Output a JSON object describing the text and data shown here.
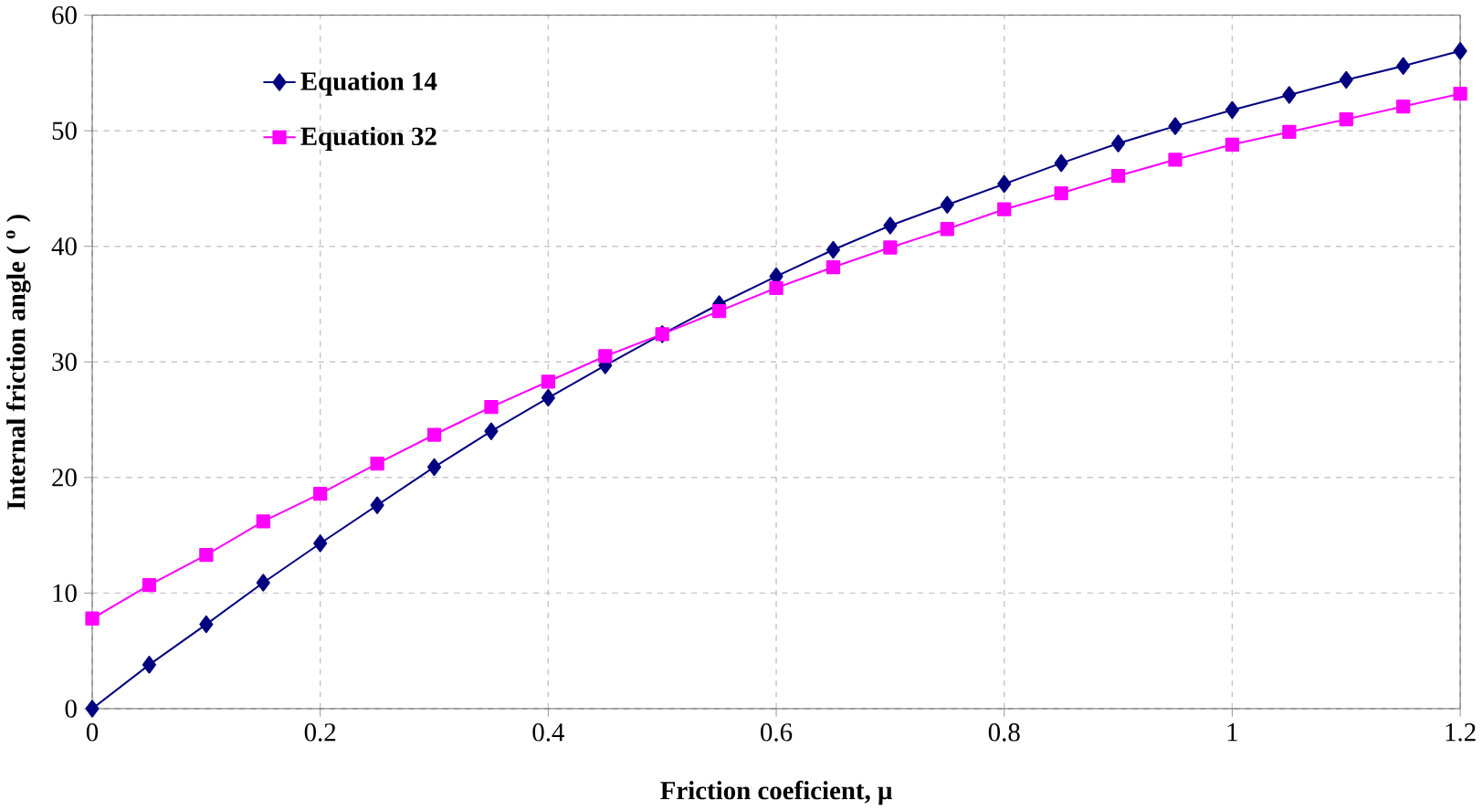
{
  "chart_data": {
    "type": "line",
    "xlabel": "Friction coeficient, μ",
    "ylabel": "Internal friction angle ( $^{o}$ )",
    "x": [
      0,
      0.05,
      0.1,
      0.15,
      0.2,
      0.25,
      0.3,
      0.35,
      0.4,
      0.45,
      0.5,
      0.55,
      0.6,
      0.65,
      0.7,
      0.75,
      0.8,
      0.85,
      0.9,
      0.95,
      1,
      1.05,
      1.1,
      1.15,
      1.2
    ],
    "series": [
      {
        "name": "Equation 14",
        "color": "#000080",
        "marker": "diamond",
        "values": [
          0,
          3.8,
          7.3,
          10.9,
          14.3,
          17.6,
          20.9,
          24.0,
          26.9,
          29.7,
          32.4,
          35.0,
          37.4,
          39.7,
          41.8,
          43.6,
          45.4,
          47.2,
          48.9,
          50.4,
          51.8,
          53.1,
          54.4,
          55.6,
          56.9
        ]
      },
      {
        "name": "Equation 32",
        "color": "#ff00ff",
        "marker": "square",
        "values": [
          7.8,
          10.7,
          13.3,
          16.2,
          18.6,
          21.2,
          23.7,
          26.1,
          28.3,
          30.5,
          32.4,
          34.4,
          36.4,
          38.2,
          39.9,
          41.5,
          43.2,
          44.6,
          46.1,
          47.5,
          48.8,
          49.9,
          51.0,
          52.1,
          53.2
        ]
      }
    ],
    "xlim": [
      0,
      1.2
    ],
    "ylim": [
      0,
      60
    ],
    "xticks": [
      0,
      0.2,
      0.4,
      0.6,
      0.8,
      1,
      1.2
    ],
    "yticks": [
      0,
      10,
      20,
      30,
      40,
      50,
      60
    ],
    "grid": true,
    "legend": "top left",
    "line_style": "solid"
  }
}
